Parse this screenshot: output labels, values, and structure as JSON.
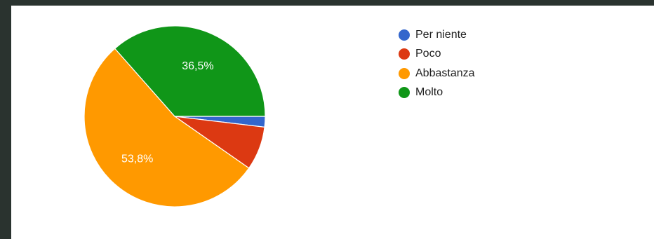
{
  "chart_data": {
    "type": "pie",
    "title": "",
    "categories": [
      "Per niente",
      "Poco",
      "Abbastanza",
      "Molto"
    ],
    "values": [
      1.9,
      7.8,
      53.8,
      36.5
    ],
    "slice_labels": [
      "",
      "",
      "53,8%",
      "36,5%"
    ],
    "colors": [
      "#3366cc",
      "#dc3912",
      "#ff9900",
      "#109618"
    ],
    "legend_position": "right"
  }
}
